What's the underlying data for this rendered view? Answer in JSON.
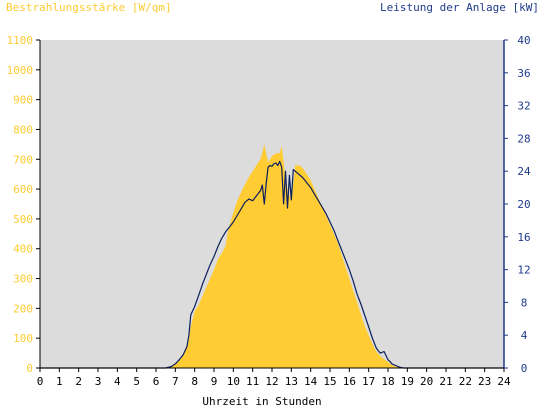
{
  "chart_data": {
    "type": "area",
    "title_left": "Bestrahlungsstärke [W/qm]",
    "title_right": "Leistung der Anlage [kW]",
    "xlabel": "Uhrzeit in Stunden",
    "xlim": [
      0,
      24
    ],
    "x_ticks": [
      "0",
      "1",
      "2",
      "3",
      "4",
      "5",
      "6",
      "7",
      "8",
      "9",
      "10",
      "11",
      "12",
      "13",
      "14",
      "15",
      "16",
      "17",
      "18",
      "19",
      "20",
      "21",
      "22",
      "23",
      "24"
    ],
    "ylim_left": [
      0,
      1100
    ],
    "y_ticks_left": [
      "0",
      "100",
      "200",
      "300",
      "400",
      "500",
      "600",
      "700",
      "800",
      "900",
      "1000",
      "1100"
    ],
    "ylim_right": [
      0,
      40
    ],
    "y_ticks_right": [
      "0",
      "4",
      "8",
      "12",
      "16",
      "20",
      "24",
      "28",
      "32",
      "36",
      "40"
    ],
    "colors": {
      "plot_background": "#dcdcdc",
      "irradiance_fill": "#ffcc33",
      "power_line": "#0b1f5c",
      "left_axis_text": "#ffcc33",
      "right_axis_text": "#1f3b8c"
    },
    "series": [
      {
        "axis": "left",
        "style": "area",
        "x": [
          0,
          6.5,
          6.7,
          6.8,
          7.0,
          7.2,
          7.4,
          7.6,
          7.7,
          7.8,
          8.0,
          8.2,
          8.4,
          8.6,
          8.8,
          9.0,
          9.2,
          9.4,
          9.6,
          9.7,
          9.9,
          10.0,
          10.2,
          10.4,
          10.6,
          10.8,
          11.0,
          11.2,
          11.4,
          11.5,
          11.6,
          11.8,
          12.0,
          12.2,
          12.4,
          12.5,
          12.6,
          12.7,
          12.8,
          12.9,
          13.0,
          13.1,
          13.2,
          13.4,
          13.6,
          13.8,
          14.0,
          14.2,
          14.4,
          14.6,
          14.8,
          15.0,
          15.2,
          15.4,
          15.6,
          15.8,
          16.0,
          16.2,
          16.4,
          16.6,
          16.8,
          17.0,
          17.2,
          17.4,
          17.6,
          17.8,
          18.0,
          18.2,
          18.4,
          18.6,
          18.8,
          19.0,
          19.2,
          24
        ],
        "values": [
          0,
          0,
          4,
          8,
          15,
          25,
          45,
          70,
          95,
          140,
          190,
          210,
          240,
          270,
          300,
          330,
          365,
          385,
          410,
          450,
          500,
          520,
          560,
          590,
          615,
          640,
          660,
          680,
          700,
          720,
          750,
          690,
          710,
          720,
          720,
          745,
          690,
          640,
          600,
          580,
          570,
          620,
          680,
          680,
          670,
          650,
          630,
          600,
          570,
          540,
          510,
          480,
          450,
          420,
          380,
          340,
          300,
          260,
          220,
          180,
          140,
          110,
          80,
          55,
          40,
          30,
          20,
          10,
          5,
          3,
          1,
          0,
          0,
          0
        ]
      },
      {
        "axis": "right",
        "style": "line",
        "x": [
          0,
          6.5,
          6.8,
          7.0,
          7.2,
          7.4,
          7.6,
          7.7,
          7.8,
          8.0,
          8.2,
          8.4,
          8.6,
          8.8,
          9.0,
          9.2,
          9.4,
          9.6,
          9.8,
          10.0,
          10.2,
          10.4,
          10.6,
          10.8,
          11.0,
          11.2,
          11.4,
          11.5,
          11.6,
          11.7,
          11.8,
          11.9,
          12.0,
          12.1,
          12.2,
          12.3,
          12.4,
          12.5,
          12.6,
          12.7,
          12.8,
          12.9,
          13.0,
          13.1,
          13.2,
          13.3,
          13.4,
          13.6,
          13.8,
          14.0,
          14.2,
          14.4,
          14.6,
          14.8,
          15.0,
          15.2,
          15.4,
          15.6,
          15.8,
          16.0,
          16.2,
          16.4,
          16.6,
          16.8,
          17.0,
          17.2,
          17.4,
          17.6,
          17.8,
          18.0,
          18.1,
          18.2,
          18.4,
          18.6,
          18.8,
          19.0,
          19.2,
          24
        ],
        "values": [
          0,
          0,
          0.2,
          0.5,
          1.0,
          1.6,
          2.6,
          4.0,
          6.5,
          7.5,
          8.8,
          10.2,
          11.4,
          12.6,
          13.6,
          14.8,
          15.8,
          16.6,
          17.2,
          17.8,
          18.6,
          19.4,
          20.2,
          20.6,
          20.4,
          21.0,
          21.6,
          22.3,
          20.0,
          22.5,
          24.5,
          24.7,
          24.6,
          24.9,
          25.0,
          24.7,
          25.2,
          24.5,
          20.0,
          24.0,
          19.5,
          23.5,
          20.5,
          24.2,
          24.0,
          23.8,
          23.6,
          23.2,
          22.6,
          22.0,
          21.2,
          20.4,
          19.6,
          18.8,
          17.8,
          16.8,
          15.6,
          14.4,
          13.2,
          12.0,
          10.6,
          9.0,
          7.8,
          6.4,
          5.0,
          3.6,
          2.4,
          1.8,
          2.0,
          1.0,
          0.8,
          0.5,
          0.3,
          0.1,
          0,
          0,
          0,
          0
        ]
      }
    ]
  }
}
